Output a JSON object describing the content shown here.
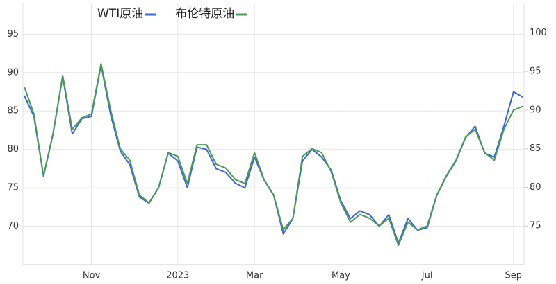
{
  "chart_data": {
    "type": "line",
    "categories": [
      null,
      null,
      null,
      null,
      null,
      null,
      null,
      "Nov",
      null,
      null,
      null,
      null,
      null,
      null,
      null,
      null,
      "2023",
      null,
      null,
      null,
      null,
      null,
      null,
      null,
      "Mar",
      null,
      null,
      null,
      null,
      null,
      null,
      null,
      null,
      "May",
      null,
      null,
      null,
      null,
      null,
      null,
      null,
      null,
      "Jul",
      null,
      null,
      null,
      null,
      null,
      null,
      null,
      null,
      "Sep",
      null
    ],
    "series": [
      {
        "name": "WTI原油",
        "color": "#3a68d6",
        "values": [
          87,
          84.3,
          76.5,
          82,
          89.5,
          82,
          84,
          84.3,
          91,
          84.5,
          79.8,
          78,
          73.8,
          73,
          75,
          79.5,
          78.5,
          75,
          80.3,
          80,
          77.5,
          77,
          75.6,
          75,
          79,
          76,
          74,
          69,
          71,
          78.5,
          80,
          79,
          77.3,
          73.3,
          71,
          72,
          71.5,
          70,
          71.5,
          67.8,
          71,
          69.5,
          69.8,
          74,
          76.5,
          78.5,
          81.5,
          83,
          79.5,
          79,
          83,
          87.5,
          86.8
        ]
      },
      {
        "name": "布伦特原油",
        "color": "#4c9a58",
        "axis": "y2",
        "values": [
          93,
          89.5,
          81.5,
          87,
          94.5,
          87.5,
          89,
          89.5,
          96,
          90,
          85,
          83.5,
          79,
          78,
          80,
          84.5,
          84,
          80.5,
          85.5,
          85.5,
          83,
          82.5,
          81,
          80.5,
          84.5,
          81,
          79,
          74.5,
          76,
          84,
          85,
          84.5,
          82,
          78,
          75.5,
          76.5,
          76,
          75,
          76,
          72.5,
          75.5,
          74.5,
          75,
          79,
          81.5,
          83.5,
          86.5,
          87.5,
          84.5,
          83.5,
          87.5,
          90,
          90.5
        ]
      }
    ],
    "ylim": [
      65,
      99
    ],
    "yticks": [
      70,
      75,
      80,
      85,
      90,
      95
    ],
    "y2lim": [
      70,
      103.8
    ],
    "y2ticks": [
      75,
      80,
      85,
      90,
      95,
      100
    ],
    "grid": true,
    "legend": "top"
  }
}
